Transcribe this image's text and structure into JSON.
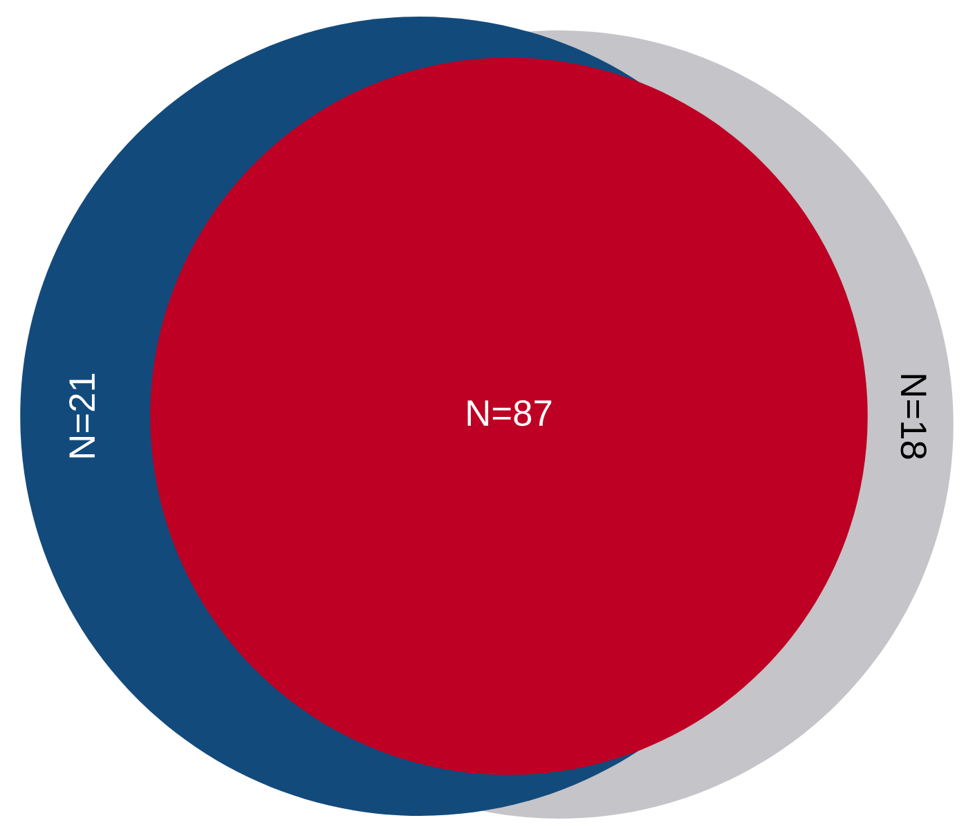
{
  "chart_data": {
    "type": "other",
    "categories": [
      null,
      null,
      null
    ],
    "values": [
      21,
      87,
      18
    ],
    "colors": [
      "#134a7c",
      "#bd0023",
      "#c5c4c8"
    ],
    "value_labels": [
      "N=21",
      "N=87",
      "N=18"
    ]
  }
}
